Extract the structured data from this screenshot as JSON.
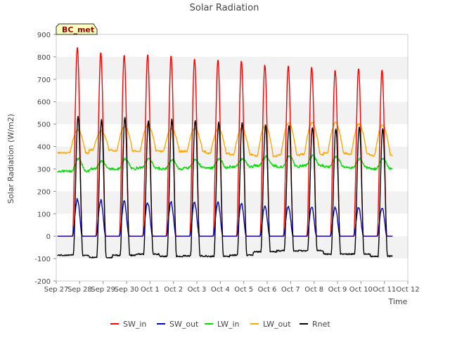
{
  "chart_data": {
    "type": "line",
    "title": "Solar Radiation",
    "xlabel": "Time",
    "ylabel": "Solar Radiation (W/m2)",
    "ylim": [
      -200,
      900
    ],
    "yticks": [
      -200,
      -100,
      0,
      100,
      200,
      300,
      400,
      500,
      600,
      700,
      800,
      900
    ],
    "xlim": [
      0,
      15
    ],
    "xtick_labels": [
      "Sep 27",
      "Sep 28",
      "Sep 29",
      "Sep 30",
      "Oct 1",
      "Oct 2",
      "Oct 3",
      "Oct 4",
      "Oct 5",
      "Oct 6",
      "Oct 7",
      "Oct 8",
      "Oct 9",
      "Oct 10",
      "Oct 11",
      "Oct 12"
    ],
    "grid": "horizontal bands",
    "legend_position": "bottom-center",
    "station_label": "BC_met",
    "x_unit": "days since Sep 27 00:00 (day peaks near solar noon)",
    "day_centers": [
      0.9,
      1.9,
      2.9,
      3.9,
      4.9,
      5.9,
      6.9,
      7.9,
      8.9,
      9.9,
      10.9,
      11.9,
      12.9,
      13.9
    ],
    "series": [
      {
        "name": "SW_in",
        "color": "#ff0000",
        "daily_peak": [
          845,
          820,
          808,
          810,
          805,
          790,
          788,
          782,
          765,
          760,
          755,
          742,
          750,
          742
        ]
      },
      {
        "name": "SW_out",
        "color": "#0000cc",
        "daily_peak": [
          165,
          160,
          155,
          150,
          152,
          150,
          150,
          145,
          135,
          132,
          130,
          128,
          128,
          128
        ]
      },
      {
        "name": "LW_in",
        "color": "#00dd00",
        "daily_min": [
          290,
          300,
          300,
          305,
          300,
          305,
          305,
          310,
          315,
          310,
          315,
          310,
          305,
          300
        ],
        "daily_peak": [
          345,
          335,
          345,
          345,
          340,
          340,
          345,
          345,
          355,
          360,
          360,
          355,
          345,
          345
        ]
      },
      {
        "name": "LW_out",
        "color": "#ffa500",
        "daily_min": [
          372,
          385,
          380,
          380,
          378,
          378,
          370,
          365,
          358,
          362,
          365,
          370,
          365,
          360
        ],
        "daily_peak": [
          475,
          470,
          490,
          495,
          480,
          480,
          480,
          480,
          495,
          505,
          505,
          505,
          500,
          495
        ]
      },
      {
        "name": "Rnet",
        "color": "#000000",
        "night_level": [
          -85,
          -95,
          -85,
          -80,
          -90,
          -88,
          -90,
          -85,
          -70,
          -65,
          -65,
          -80,
          -80,
          -90
        ],
        "daily_peak": [
          535,
          520,
          530,
          515,
          520,
          518,
          510,
          508,
          495,
          495,
          485,
          480,
          490,
          480
        ]
      }
    ]
  }
}
